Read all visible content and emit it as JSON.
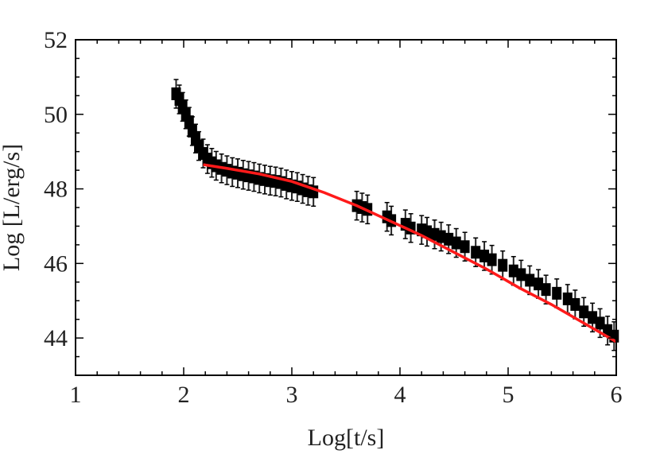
{
  "chart_data": {
    "type": "scatter",
    "xlabel": "Log[t/s]",
    "ylabel": "Log [L/erg/s]",
    "xlim": [
      1,
      6
    ],
    "ylim": [
      43,
      52
    ],
    "x_ticks": [
      1,
      2,
      3,
      4,
      5,
      6
    ],
    "y_ticks": [
      44,
      46,
      48,
      50,
      52
    ],
    "grid": false,
    "colors": {
      "data": "#000000",
      "fit": "#ff1a1a",
      "frame": "#000000"
    },
    "series": [
      {
        "kind": "points_with_errorbars",
        "color": "#000000",
        "points": [
          [
            1.93,
            50.55
          ],
          [
            1.96,
            50.4
          ],
          [
            1.99,
            50.2
          ],
          [
            2.02,
            50.0
          ],
          [
            2.05,
            49.8
          ],
          [
            2.08,
            49.55
          ],
          [
            2.11,
            49.35
          ],
          [
            2.14,
            49.15
          ],
          [
            2.18,
            48.95
          ],
          [
            2.22,
            48.8
          ],
          [
            2.26,
            48.7
          ],
          [
            2.3,
            48.62
          ],
          [
            2.35,
            48.55
          ],
          [
            2.4,
            48.5
          ],
          [
            2.45,
            48.45
          ],
          [
            2.5,
            48.42
          ],
          [
            2.55,
            48.38
          ],
          [
            2.6,
            48.35
          ],
          [
            2.65,
            48.32
          ],
          [
            2.7,
            48.28
          ],
          [
            2.75,
            48.25
          ],
          [
            2.8,
            48.22
          ],
          [
            2.85,
            48.2
          ],
          [
            2.9,
            48.17
          ],
          [
            2.95,
            48.12
          ],
          [
            3.0,
            48.08
          ],
          [
            3.05,
            48.05
          ],
          [
            3.1,
            48.0
          ],
          [
            3.15,
            47.95
          ],
          [
            3.2,
            47.92
          ],
          [
            3.6,
            47.55
          ],
          [
            3.65,
            47.5
          ],
          [
            3.7,
            47.45
          ],
          [
            3.88,
            47.25
          ],
          [
            3.92,
            47.15
          ],
          [
            4.05,
            47.05
          ],
          [
            4.1,
            46.95
          ],
          [
            4.2,
            46.9
          ],
          [
            4.25,
            46.85
          ],
          [
            4.32,
            46.78
          ],
          [
            4.38,
            46.72
          ],
          [
            4.45,
            46.65
          ],
          [
            4.52,
            46.55
          ],
          [
            4.6,
            46.45
          ],
          [
            4.7,
            46.3
          ],
          [
            4.78,
            46.2
          ],
          [
            4.85,
            46.1
          ],
          [
            4.95,
            45.95
          ],
          [
            5.05,
            45.8
          ],
          [
            5.12,
            45.7
          ],
          [
            5.2,
            45.55
          ],
          [
            5.28,
            45.45
          ],
          [
            5.35,
            45.3
          ],
          [
            5.45,
            45.2
          ],
          [
            5.55,
            45.05
          ],
          [
            5.62,
            44.9
          ],
          [
            5.7,
            44.7
          ],
          [
            5.78,
            44.55
          ],
          [
            5.85,
            44.4
          ],
          [
            5.92,
            44.2
          ],
          [
            5.98,
            44.05
          ]
        ]
      },
      {
        "kind": "fit_line",
        "color": "#ff1a1a",
        "points": [
          [
            2.18,
            48.65
          ],
          [
            2.4,
            48.55
          ],
          [
            2.7,
            48.4
          ],
          [
            3.0,
            48.2
          ],
          [
            3.3,
            47.9
          ],
          [
            3.6,
            47.55
          ],
          [
            3.9,
            47.15
          ],
          [
            4.2,
            46.75
          ],
          [
            4.5,
            46.3
          ],
          [
            4.8,
            45.85
          ],
          [
            5.1,
            45.35
          ],
          [
            5.4,
            44.9
          ],
          [
            5.7,
            44.4
          ],
          [
            6.0,
            43.9
          ]
        ]
      }
    ]
  }
}
